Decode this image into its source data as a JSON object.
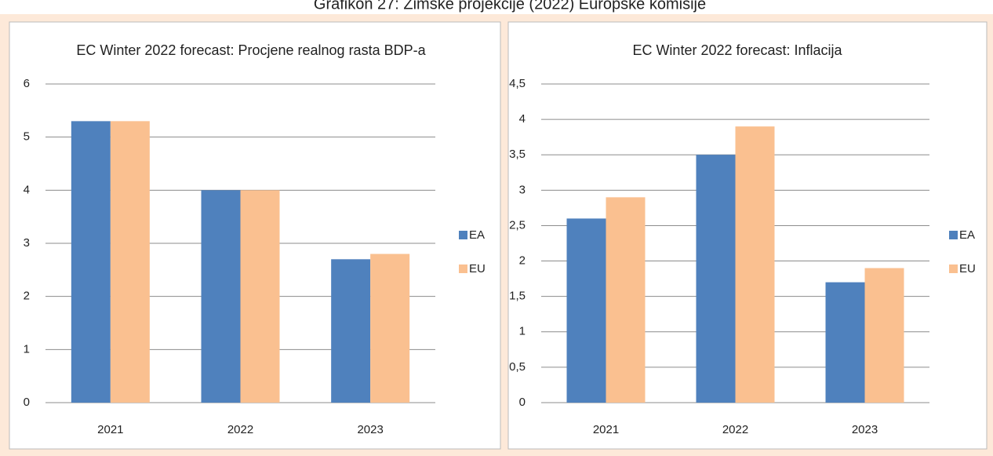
{
  "page_title": "Grafikon 27: Zimske projekcije (2022) Europske komisije",
  "chart_data": [
    {
      "type": "bar",
      "title": "EC Winter 2022 forecast: Procjene realnog rasta BDP-a",
      "categories": [
        "2021",
        "2022",
        "2023"
      ],
      "series": [
        {
          "name": "EA",
          "color": "#4f81bd",
          "values": [
            5.3,
            4.0,
            2.7
          ]
        },
        {
          "name": "EU",
          "color": "#fac090",
          "values": [
            5.3,
            4.0,
            2.8
          ]
        }
      ],
      "ylim": [
        0,
        6
      ],
      "yticks": [
        0,
        1,
        2,
        3,
        4,
        5,
        6
      ],
      "grid": true,
      "legend": "right"
    },
    {
      "type": "bar",
      "title": "EC Winter 2022 forecast: Inflacija",
      "categories": [
        "2021",
        "2022",
        "2023"
      ],
      "series": [
        {
          "name": "EA",
          "color": "#4f81bd",
          "values": [
            2.6,
            3.5,
            1.7
          ]
        },
        {
          "name": "EU",
          "color": "#fac090",
          "values": [
            2.9,
            3.9,
            1.9
          ]
        }
      ],
      "ylim": [
        0,
        4.5
      ],
      "yticks": [
        0,
        {
          "value": 0.5,
          "label": "0,5"
        },
        1,
        {
          "value": 1.5,
          "label": "1,5"
        },
        2,
        {
          "value": 2.5,
          "label": "2,5"
        },
        3,
        {
          "value": 3.5,
          "label": "3,5"
        },
        4,
        {
          "value": 4.5,
          "label": "4,5"
        }
      ],
      "grid": true,
      "legend": "right"
    }
  ]
}
